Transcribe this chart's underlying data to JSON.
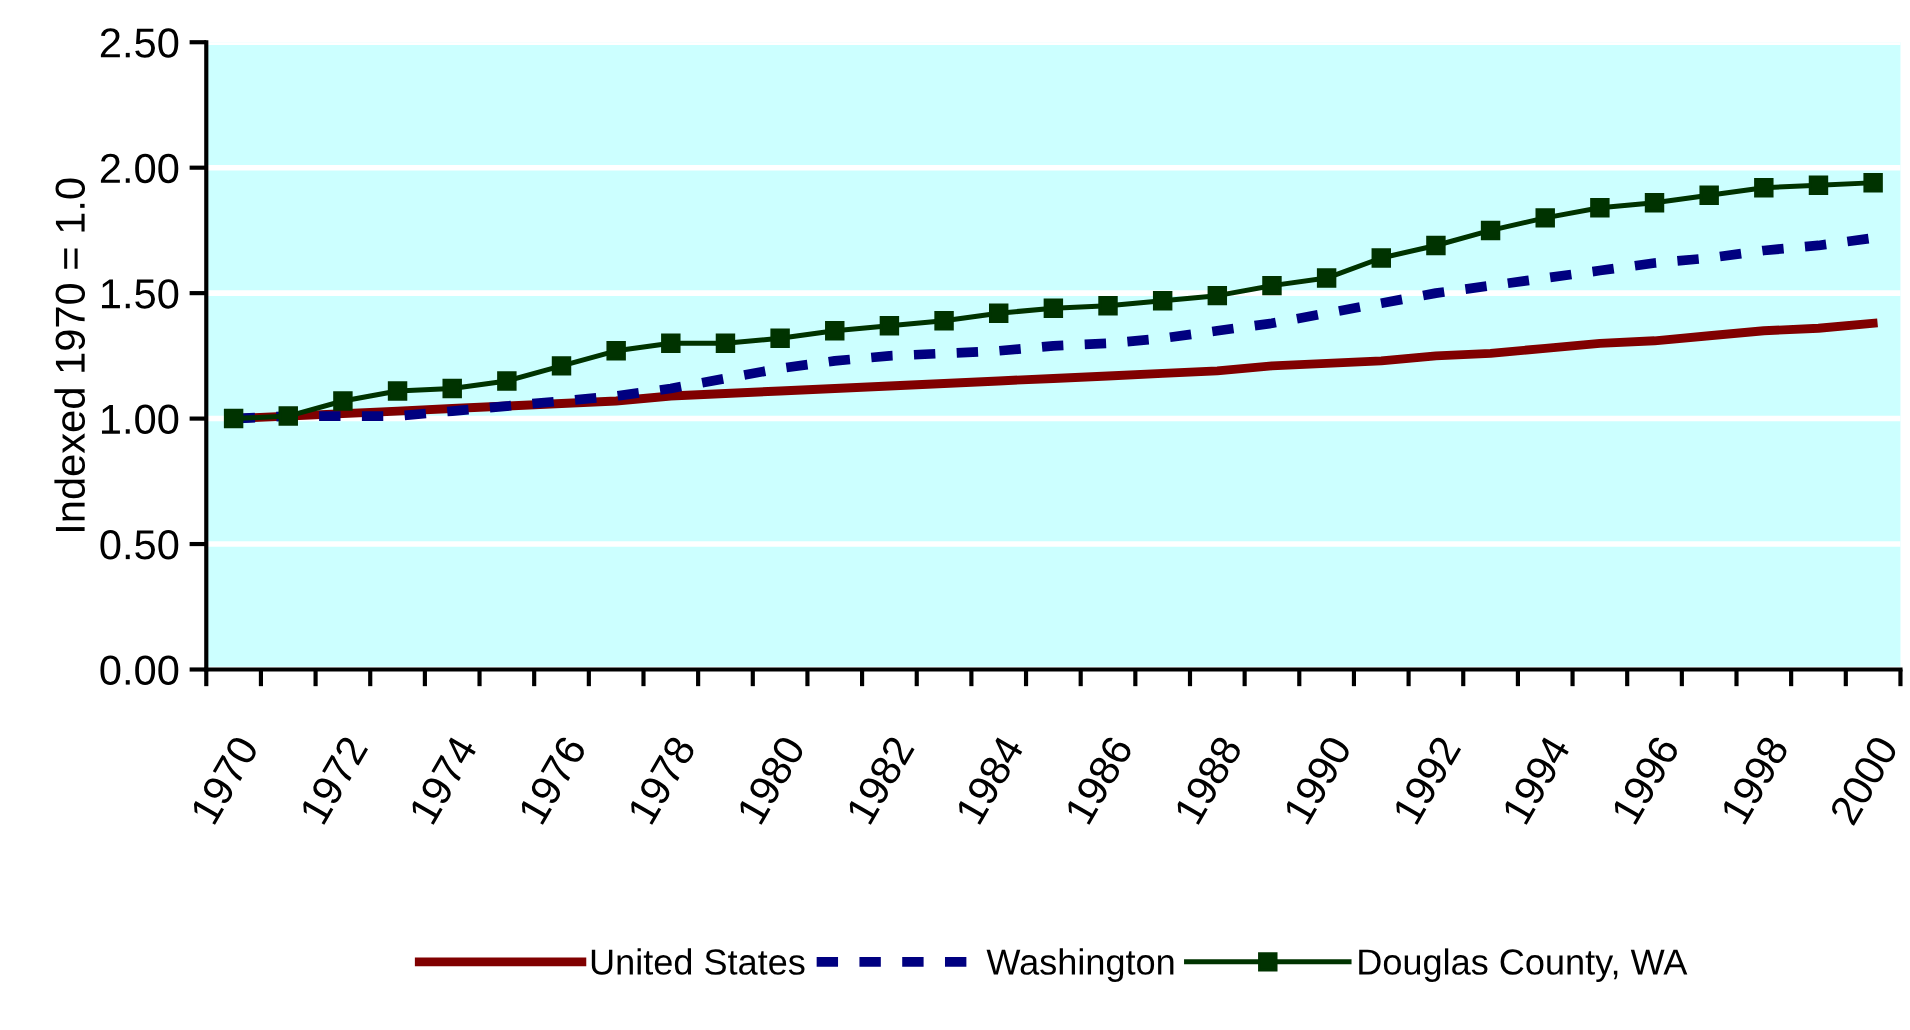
{
  "chart_data": {
    "type": "line",
    "ylabel": "Indexed 1970 = 1.0",
    "categories": [
      "1970",
      null,
      "1972",
      null,
      "1974",
      null,
      "1976",
      null,
      "1978",
      null,
      "1980",
      null,
      "1982",
      null,
      "1984",
      null,
      "1986",
      null,
      "1988",
      null,
      "1990",
      null,
      "1992",
      null,
      "1994",
      null,
      "1996",
      null,
      "1998",
      null,
      "2000"
    ],
    "series": [
      {
        "name": "United States",
        "color": "#800000",
        "line_style": "solid",
        "marker": "none",
        "values": [
          1.0,
          1.01,
          1.02,
          1.03,
          1.04,
          1.05,
          1.06,
          1.07,
          1.09,
          1.1,
          1.11,
          1.12,
          1.13,
          1.14,
          1.15,
          1.16,
          1.17,
          1.18,
          1.19,
          1.21,
          1.22,
          1.23,
          1.25,
          1.26,
          1.28,
          1.3,
          1.31,
          1.33,
          1.35,
          1.36,
          1.38
        ]
      },
      {
        "name": "Washington",
        "color": "#000080",
        "line_style": "dashed",
        "marker": "none",
        "values": [
          1.0,
          1.01,
          1.01,
          1.01,
          1.03,
          1.05,
          1.07,
          1.09,
          1.12,
          1.16,
          1.2,
          1.23,
          1.25,
          1.26,
          1.27,
          1.29,
          1.3,
          1.32,
          1.35,
          1.38,
          1.42,
          1.46,
          1.5,
          1.53,
          1.56,
          1.59,
          1.62,
          1.64,
          1.67,
          1.69,
          1.72
        ]
      },
      {
        "name": "Douglas County, WA",
        "color": "#003300",
        "line_style": "solid",
        "marker": "square",
        "values": [
          1.0,
          1.01,
          1.07,
          1.11,
          1.12,
          1.15,
          1.21,
          1.27,
          1.3,
          1.3,
          1.32,
          1.35,
          1.37,
          1.39,
          1.42,
          1.44,
          1.45,
          1.47,
          1.49,
          1.53,
          1.56,
          1.64,
          1.69,
          1.75,
          1.8,
          1.84,
          1.86,
          1.89,
          1.92,
          1.93,
          1.94
        ]
      }
    ],
    "ylim": [
      0,
      2.5
    ],
    "yticks": [
      {
        "value": 0,
        "label": "0.00"
      },
      {
        "value": 0.5,
        "label": "0.50"
      },
      {
        "value": 1,
        "label": "1.00"
      },
      {
        "value": 1.5,
        "label": "1.50"
      },
      {
        "value": 2,
        "label": "2.00"
      },
      {
        "value": 2.5,
        "label": "2.50"
      }
    ],
    "grid": "y",
    "legend": "bottom"
  }
}
